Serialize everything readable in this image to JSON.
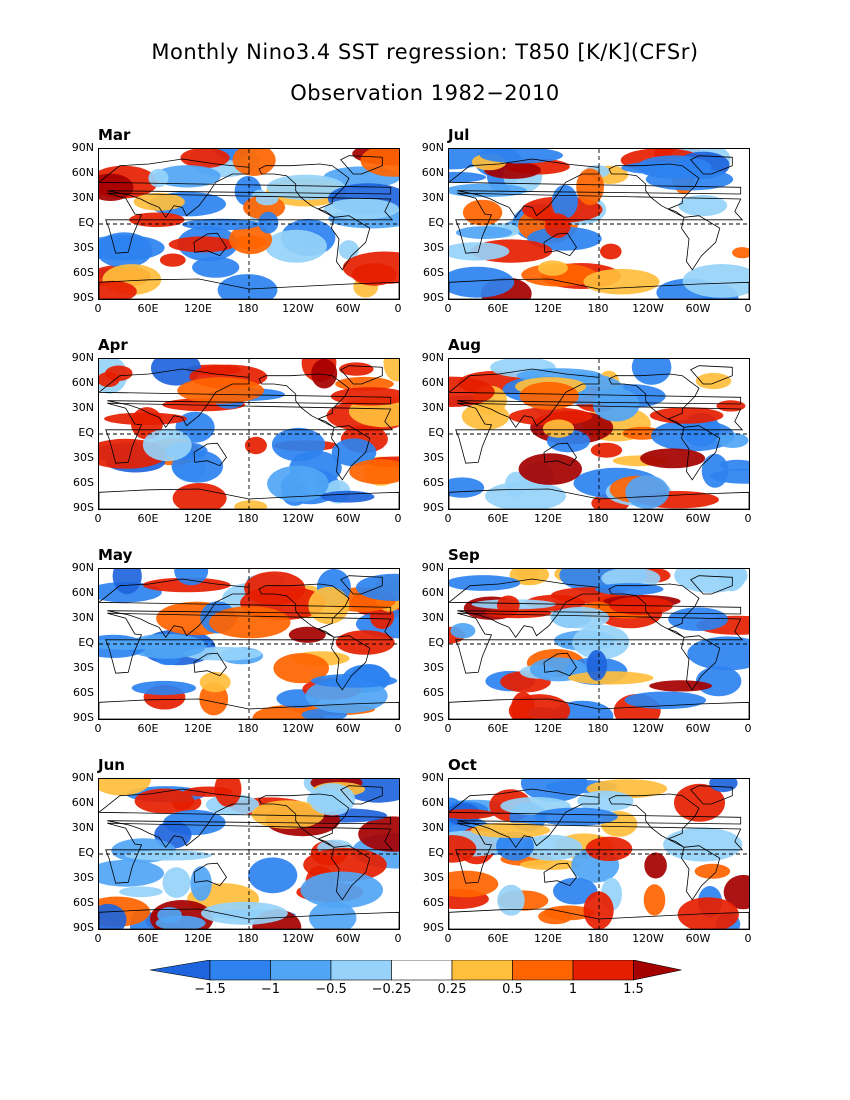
{
  "title": "Monthly Nino3.4 SST regression: T850 [K/K](CFSr)",
  "subtitle": "Observation 1982−2010",
  "y_ticks": [
    "90N",
    "60N",
    "30N",
    "EQ",
    "30S",
    "60S",
    "90S"
  ],
  "x_ticks": [
    "0",
    "60E",
    "120E",
    "180",
    "120W",
    "60W",
    "0"
  ],
  "panels": [
    {
      "month": "Mar"
    },
    {
      "month": "Jul"
    },
    {
      "month": "Apr"
    },
    {
      "month": "Aug"
    },
    {
      "month": "May"
    },
    {
      "month": "Sep"
    },
    {
      "month": "Jun"
    },
    {
      "month": "Oct"
    }
  ],
  "colorbar": {
    "labels": [
      "−1.5",
      "−1",
      "−0.5",
      "−0.25",
      "0.25",
      "0.5",
      "1",
      "1.5"
    ],
    "colors": [
      "#1e64dc",
      "#2d82f0",
      "#50a5f5",
      "#96d2fa",
      "#ffffff",
      "#ffbe3c",
      "#ff6400",
      "#e61e00",
      "#a50000"
    ]
  },
  "colors": {
    "land_outline": "#000000",
    "grid_dash": "#000000"
  }
}
